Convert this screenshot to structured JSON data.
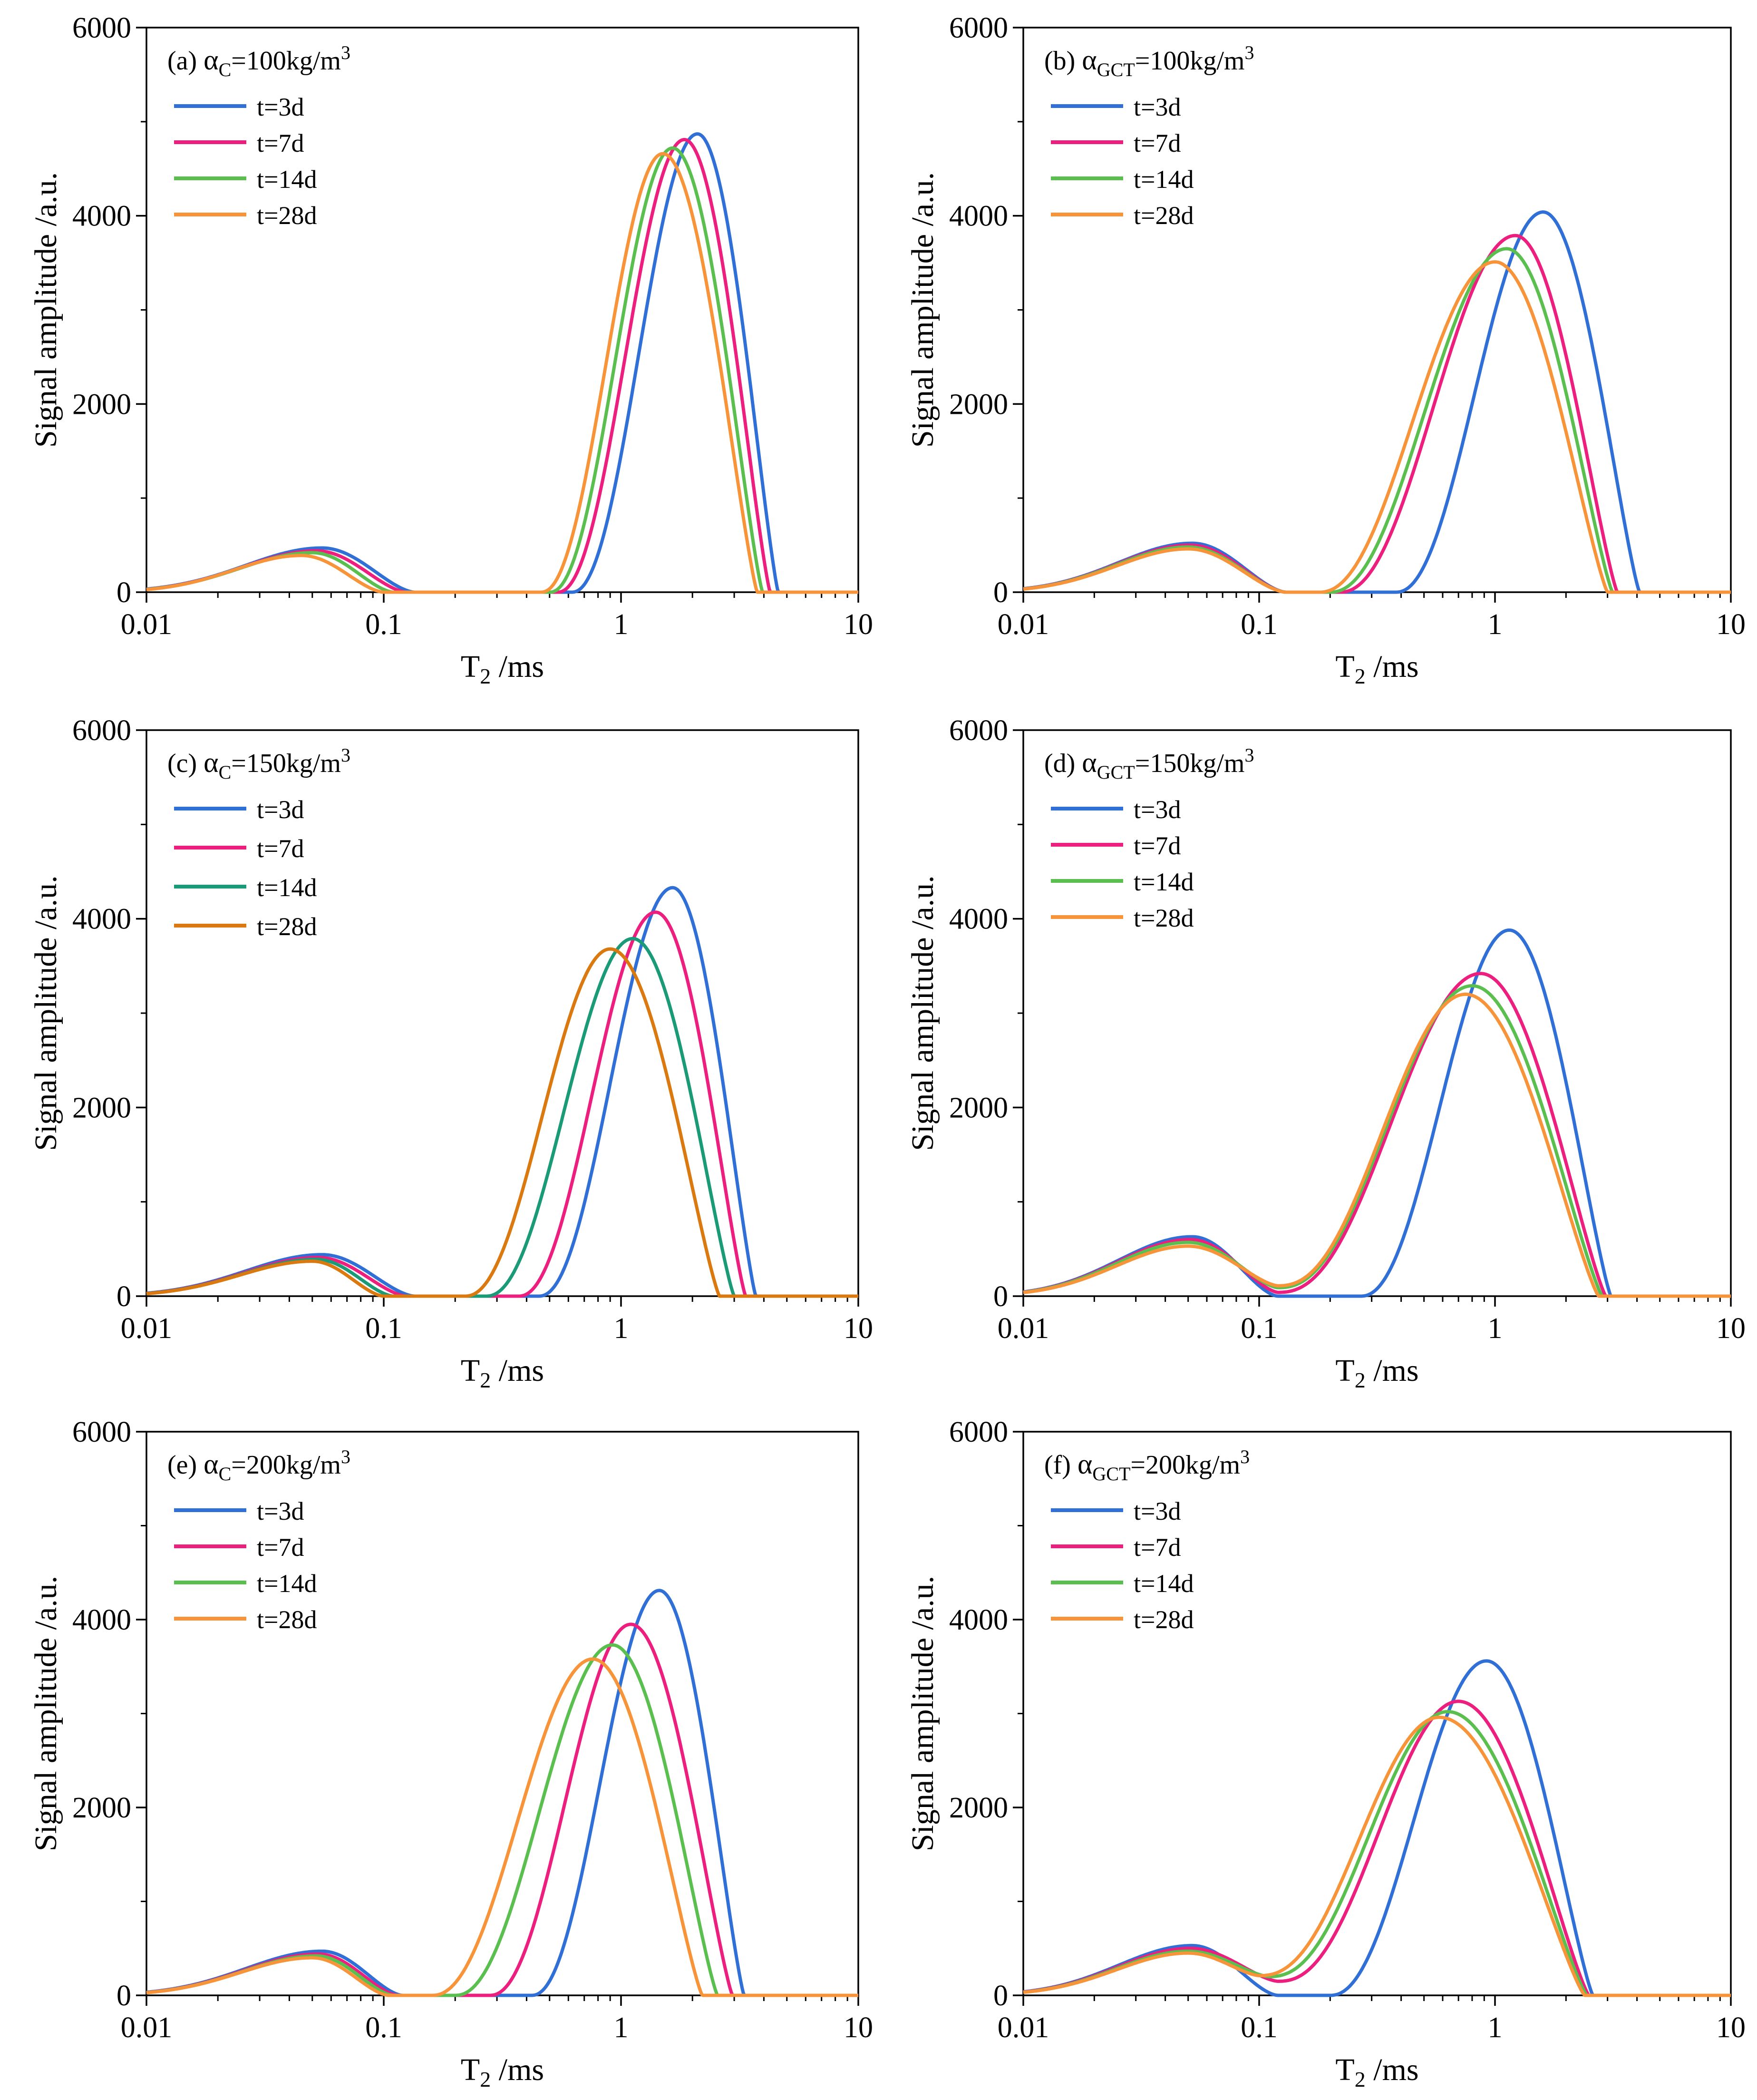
{
  "figure": {
    "x_label_main": "T",
    "x_label_sub": "2",
    "x_label_unit": " /ms",
    "y_label": "Signal amplitude /a.u."
  },
  "colors": {
    "3d": "#2f6fd6",
    "7d": "#ec1f7f",
    "14d": "#5bbf4f",
    "28d": "#f7943a",
    "14d_c": "#1a9a76",
    "28d_c": "#d9790f"
  },
  "chart_data": [
    {
      "id": "a",
      "type": "line",
      "label_prefix": "(a) ",
      "label_symbol": "α",
      "label_sub": "C",
      "label_rest": "=100kg/m",
      "label_sup": "3",
      "xscale": "log",
      "xlim": [
        0.01,
        10
      ],
      "ylim": [
        0,
        6000
      ],
      "xticks": [
        "0.01",
        "0.1",
        "1",
        "10"
      ],
      "yticks": [
        "0",
        "2000",
        "4000",
        "6000"
      ],
      "series": [
        {
          "name": "t=3d",
          "color_key": "3d",
          "small_peak": {
            "x": 0.055,
            "y": 470,
            "zero": 0.135
          },
          "big_peak": {
            "start": 0.62,
            "x": 2.1,
            "y": 4870,
            "end": 4.6
          }
        },
        {
          "name": "t=7d",
          "color_key": "7d",
          "small_peak": {
            "x": 0.052,
            "y": 440,
            "zero": 0.125
          },
          "big_peak": {
            "start": 0.54,
            "x": 1.85,
            "y": 4810,
            "end": 4.25
          }
        },
        {
          "name": "t=14d",
          "color_key": "14d",
          "small_peak": {
            "x": 0.05,
            "y": 420,
            "zero": 0.11
          },
          "big_peak": {
            "start": 0.5,
            "x": 1.65,
            "y": 4720,
            "end": 3.95
          }
        },
        {
          "name": "t=28d",
          "color_key": "28d",
          "small_peak": {
            "x": 0.045,
            "y": 390,
            "zero": 0.1
          },
          "big_peak": {
            "start": 0.46,
            "x": 1.5,
            "y": 4660,
            "end": 3.75
          }
        }
      ]
    },
    {
      "id": "b",
      "type": "line",
      "label_prefix": "(b) ",
      "label_symbol": "α",
      "label_sub": "GCT",
      "label_rest": "=100kg/m",
      "label_sup": "3",
      "xscale": "log",
      "xlim": [
        0.01,
        10
      ],
      "ylim": [
        0,
        6000
      ],
      "xticks": [
        "0.01",
        "0.1",
        "1",
        "10"
      ],
      "yticks": [
        "0",
        "2000",
        "4000",
        "6000"
      ],
      "series": [
        {
          "name": "t=3d",
          "color_key": "3d",
          "small_peak": {
            "x": 0.052,
            "y": 520,
            "zero": 0.13
          },
          "big_peak": {
            "start": 0.38,
            "x": 1.6,
            "y": 4040,
            "end": 4.1
          }
        },
        {
          "name": "t=7d",
          "color_key": "7d",
          "small_peak": {
            "x": 0.051,
            "y": 500,
            "zero": 0.13
          },
          "big_peak": {
            "start": 0.22,
            "x": 1.22,
            "y": 3790,
            "end": 3.3
          }
        },
        {
          "name": "t=14d",
          "color_key": "14d",
          "small_peak": {
            "x": 0.05,
            "y": 480,
            "zero": 0.13
          },
          "big_peak": {
            "start": 0.2,
            "x": 1.12,
            "y": 3650,
            "end": 3.15
          }
        },
        {
          "name": "t=28d",
          "color_key": "28d",
          "small_peak": {
            "x": 0.05,
            "y": 460,
            "zero": 0.13
          },
          "big_peak": {
            "start": 0.18,
            "x": 1.0,
            "y": 3510,
            "end": 3.0
          }
        }
      ]
    },
    {
      "id": "c",
      "type": "line",
      "label_prefix": "(c) ",
      "label_symbol": "α",
      "label_sub": "C",
      "label_rest": "=150kg/m",
      "label_sup": "3",
      "xscale": "log",
      "xlim": [
        0.01,
        10
      ],
      "ylim": [
        0,
        6000
      ],
      "xticks": [
        "0.01",
        "0.1",
        "1",
        "10"
      ],
      "yticks": [
        "0",
        "2000",
        "4000",
        "6000"
      ],
      "series": [
        {
          "name": "t=3d",
          "color_key": "3d",
          "small_peak": {
            "x": 0.055,
            "y": 440,
            "zero": 0.135
          },
          "big_peak": {
            "start": 0.45,
            "x": 1.65,
            "y": 4330,
            "end": 3.7
          }
        },
        {
          "name": "t=7d",
          "color_key": "7d",
          "small_peak": {
            "x": 0.053,
            "y": 410,
            "zero": 0.125
          },
          "big_peak": {
            "start": 0.37,
            "x": 1.4,
            "y": 4070,
            "end": 3.35
          }
        },
        {
          "name": "t=14d",
          "color_key": "14d_c",
          "small_peak": {
            "x": 0.052,
            "y": 390,
            "zero": 0.11
          },
          "big_peak": {
            "start": 0.27,
            "x": 1.12,
            "y": 3790,
            "end": 3.0
          }
        },
        {
          "name": "t=28d",
          "color_key": "28d_c",
          "small_peak": {
            "x": 0.05,
            "y": 370,
            "zero": 0.1
          },
          "big_peak": {
            "start": 0.22,
            "x": 0.9,
            "y": 3680,
            "end": 2.6
          }
        }
      ]
    },
    {
      "id": "d",
      "type": "line",
      "label_prefix": "(d) ",
      "label_symbol": "α",
      "label_sub": "GCT",
      "label_rest": "=150kg/m",
      "label_sup": "3",
      "xscale": "log",
      "xlim": [
        0.01,
        10
      ],
      "ylim": [
        0,
        6000
      ],
      "xticks": [
        "0.01",
        "0.1",
        "1",
        "10"
      ],
      "yticks": [
        "0",
        "2000",
        "4000",
        "6000"
      ],
      "series": [
        {
          "name": "t=3d",
          "color_key": "3d",
          "small_peak": {
            "x": 0.052,
            "y": 630,
            "zero": 0.12
          },
          "big_peak": {
            "start": 0.27,
            "x": 1.15,
            "y": 3880,
            "end": 3.1
          }
        },
        {
          "name": "t=7d",
          "color_key": "7d",
          "small_peak": {
            "x": 0.051,
            "y": 600,
            "min": 0.12,
            "min_y": 40
          },
          "big_peak": {
            "x": 0.87,
            "y": 3420,
            "end": 2.95
          }
        },
        {
          "name": "t=14d",
          "color_key": "14d",
          "small_peak": {
            "x": 0.05,
            "y": 570,
            "min": 0.12,
            "min_y": 90
          },
          "big_peak": {
            "x": 0.8,
            "y": 3290,
            "end": 2.85
          }
        },
        {
          "name": "t=28d",
          "color_key": "28d",
          "small_peak": {
            "x": 0.05,
            "y": 530,
            "min": 0.12,
            "min_y": 110
          },
          "big_peak": {
            "x": 0.75,
            "y": 3200,
            "end": 2.75
          }
        }
      ]
    },
    {
      "id": "e",
      "type": "line",
      "label_prefix": "(e) ",
      "label_symbol": "α",
      "label_sub": "C",
      "label_rest": "=200kg/m",
      "label_sup": "3",
      "xscale": "log",
      "xlim": [
        0.01,
        10
      ],
      "ylim": [
        0,
        6000
      ],
      "xticks": [
        "0.01",
        "0.1",
        "1",
        "10"
      ],
      "yticks": [
        "0",
        "2000",
        "4000",
        "6000"
      ],
      "series": [
        {
          "name": "t=3d",
          "color_key": "3d",
          "small_peak": {
            "x": 0.055,
            "y": 470,
            "zero": 0.12
          },
          "big_peak": {
            "start": 0.42,
            "x": 1.45,
            "y": 4310,
            "end": 3.3
          }
        },
        {
          "name": "t=7d",
          "color_key": "7d",
          "small_peak": {
            "x": 0.053,
            "y": 440,
            "zero": 0.115
          },
          "big_peak": {
            "start": 0.28,
            "x": 1.1,
            "y": 3950,
            "end": 2.95
          }
        },
        {
          "name": "t=14d",
          "color_key": "14d",
          "small_peak": {
            "x": 0.052,
            "y": 420,
            "zero": 0.11
          },
          "big_peak": {
            "start": 0.2,
            "x": 0.92,
            "y": 3730,
            "end": 2.55
          }
        },
        {
          "name": "t=28d",
          "color_key": "28d",
          "small_peak": {
            "x": 0.05,
            "y": 400,
            "zero": 0.105
          },
          "big_peak": {
            "start": 0.16,
            "x": 0.76,
            "y": 3580,
            "end": 2.2
          }
        }
      ]
    },
    {
      "id": "f",
      "type": "line",
      "label_prefix": "(f) ",
      "label_symbol": "α",
      "label_sub": "GCT",
      "label_rest": "=200kg/m",
      "label_sup": "3",
      "xscale": "log",
      "xlim": [
        0.01,
        10
      ],
      "ylim": [
        0,
        6000
      ],
      "xticks": [
        "0.01",
        "0.1",
        "1",
        "10"
      ],
      "yticks": [
        "0",
        "2000",
        "4000",
        "6000"
      ],
      "series": [
        {
          "name": "t=3d",
          "color_key": "3d",
          "small_peak": {
            "x": 0.052,
            "y": 530,
            "zero": 0.12
          },
          "big_peak": {
            "start": 0.2,
            "x": 0.92,
            "y": 3560,
            "end": 2.6
          }
        },
        {
          "name": "t=7d",
          "color_key": "7d",
          "small_peak": {
            "x": 0.051,
            "y": 500,
            "min": 0.12,
            "min_y": 150
          },
          "big_peak": {
            "x": 0.7,
            "y": 3130,
            "end": 2.5
          }
        },
        {
          "name": "t=14d",
          "color_key": "14d",
          "small_peak": {
            "x": 0.05,
            "y": 470,
            "min": 0.11,
            "min_y": 200
          },
          "big_peak": {
            "x": 0.63,
            "y": 3020,
            "end": 2.45
          }
        },
        {
          "name": "t=28d",
          "color_key": "28d",
          "small_peak": {
            "x": 0.05,
            "y": 450,
            "min": 0.1,
            "min_y": 210
          },
          "big_peak": {
            "x": 0.58,
            "y": 2960,
            "end": 2.4
          }
        }
      ]
    }
  ]
}
